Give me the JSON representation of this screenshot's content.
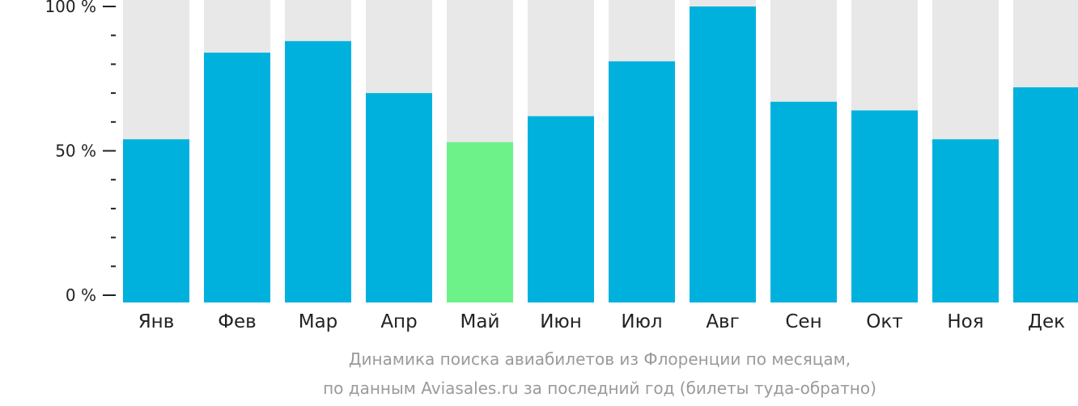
{
  "chart_data": {
    "type": "bar",
    "categories": [
      "Янв",
      "Фев",
      "Мар",
      "Апр",
      "Май",
      "Июн",
      "Июл",
      "Авг",
      "Сен",
      "Окт",
      "Ноя",
      "Дек"
    ],
    "values": [
      54,
      84,
      88,
      70,
      53,
      62,
      81,
      100,
      67,
      64,
      54,
      72
    ],
    "highlight_index": 4,
    "ylim": [
      0,
      100
    ],
    "yticks": [
      {
        "value": 0,
        "label": "0 %"
      },
      {
        "value": 50,
        "label": "50 %"
      },
      {
        "value": 100,
        "label": "100 %"
      }
    ],
    "minor_tick_step": 10,
    "grid": false,
    "title": "",
    "xlabel": "",
    "ylabel": "",
    "colors": {
      "bar": "#00b1dd",
      "highlight": "#6df28a",
      "background_bar": "#e8e8e8",
      "axis": "#222222"
    }
  },
  "caption": {
    "line1": "Динамика поиска авиабилетов из Флоренции по месяцам,",
    "line2": "по данным Aviasales.ru за последний год (билеты туда-обратно)"
  }
}
